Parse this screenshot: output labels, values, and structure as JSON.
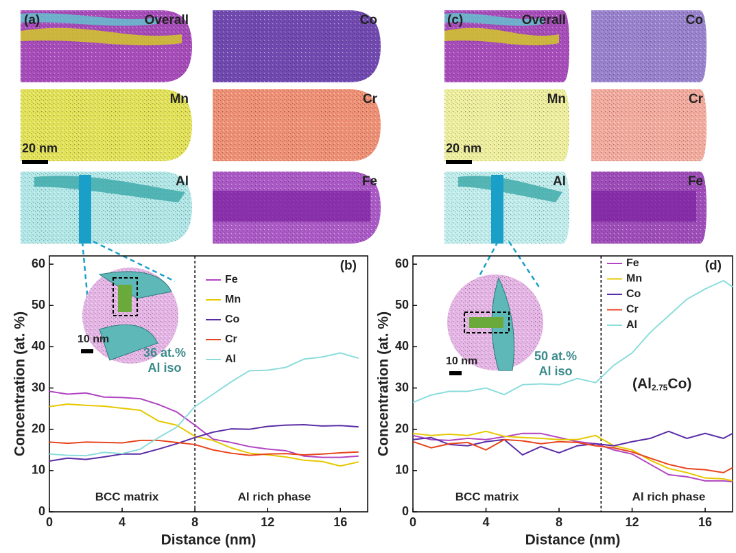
{
  "images": [
    {
      "label": "(a)",
      "maps": [
        "Overall",
        "Co",
        "Mn",
        "Cr",
        "Al",
        "Fe"
      ],
      "scale": "20 nm"
    },
    {
      "label": "(c)",
      "maps": [
        "Overall",
        "Co",
        "Mn",
        "Cr",
        "Al",
        "Fe"
      ],
      "scale": "20 nm"
    }
  ],
  "chart_data": [
    {
      "type": "line",
      "panel_label": "(b)",
      "x_label": "Distance (nm)",
      "y_label": "Concentration (at. %)",
      "x": [
        0,
        1,
        2,
        3,
        4,
        5,
        6,
        7,
        8,
        9,
        10,
        11,
        12,
        13,
        14,
        15,
        16,
        17
      ],
      "xlim": [
        0,
        17.5
      ],
      "xticks": [
        0,
        4,
        8,
        12,
        16
      ],
      "ylim": [
        0,
        62
      ],
      "yticks": [
        0,
        10,
        20,
        30,
        40,
        50,
        60
      ],
      "divider_x": 8,
      "regions": [
        "BCC matrix",
        "Al rich phase"
      ],
      "inset": {
        "scale": "10 nm",
        "iso": [
          "36 at.%",
          "Al iso"
        ]
      },
      "series": [
        {
          "name": "Fe",
          "color": "#b144c2",
          "values": [
            29.2,
            28.5,
            28.8,
            27.8,
            27.7,
            27.4,
            26.0,
            24.2,
            21.0,
            17.6,
            16.8,
            15.8,
            15.2,
            14.8,
            13.5,
            13.2,
            13.2,
            13.5
          ]
        },
        {
          "name": "Mn",
          "color": "#e6c800",
          "values": [
            25.5,
            26.1,
            25.8,
            25.6,
            25.1,
            24.6,
            22.0,
            21.0,
            18.3,
            17.3,
            15.5,
            14.2,
            13.8,
            13.3,
            12.5,
            12.2,
            11.1,
            12.1
          ]
        },
        {
          "name": "Co",
          "color": "#5a2ca6",
          "values": [
            12.3,
            13.0,
            12.7,
            13.3,
            14.0,
            14.0,
            15.2,
            16.5,
            18.0,
            19.3,
            20.1,
            20.0,
            20.7,
            21.0,
            21.1,
            20.8,
            20.9,
            20.6
          ]
        },
        {
          "name": "Cr",
          "color": "#e8441c",
          "values": [
            16.9,
            16.6,
            16.9,
            16.8,
            16.7,
            17.3,
            17.3,
            16.8,
            16.3,
            15.0,
            14.2,
            13.7,
            14.0,
            14.1,
            13.8,
            14.0,
            14.3,
            14.5
          ]
        },
        {
          "name": "Al",
          "color": "#8cdcdc",
          "values": [
            14.0,
            13.7,
            13.6,
            14.4,
            14.1,
            15.2,
            18.0,
            20.5,
            25.5,
            28.5,
            31.5,
            34.2,
            34.3,
            35.0,
            37.0,
            37.5,
            38.5,
            37.2
          ]
        }
      ]
    },
    {
      "type": "line",
      "panel_label": "(d)",
      "x_label": "Distance (nm)",
      "y_label": "Concentration (at. %)",
      "x": [
        0,
        1,
        2,
        3,
        4,
        5,
        6,
        7,
        8,
        9,
        10,
        11,
        12,
        13,
        14,
        15,
        16,
        17,
        17.5
      ],
      "xlim": [
        0,
        17.5
      ],
      "xticks": [
        0,
        4,
        8,
        12,
        16
      ],
      "ylim": [
        0,
        62
      ],
      "yticks": [
        0,
        10,
        20,
        30,
        40,
        50,
        60
      ],
      "divider_x": 10.3,
      "regions": [
        "BCC matrix",
        "Al rich phase"
      ],
      "inset": {
        "scale": "10 nm",
        "iso": [
          "50 at.%",
          "Al iso"
        ]
      },
      "phase": [
        "(Al",
        "2.75",
        "Co)"
      ],
      "series": [
        {
          "name": "Fe",
          "color": "#b144c2",
          "values": [
            18.5,
            17.5,
            17.3,
            17.8,
            17.5,
            18.2,
            19.0,
            19.0,
            18.0,
            17.0,
            16.5,
            15.0,
            14.0,
            11.5,
            9.0,
            8.5,
            7.5,
            7.5,
            7.3
          ]
        },
        {
          "name": "Mn",
          "color": "#e6c800",
          "values": [
            19.0,
            18.5,
            18.8,
            18.5,
            19.5,
            18.3,
            18.0,
            17.8,
            17.5,
            17.5,
            18.5,
            16.0,
            15.0,
            12.5,
            10.5,
            9.5,
            8.2,
            8.0,
            7.5
          ]
        },
        {
          "name": "Co",
          "color": "#5a2ca6",
          "values": [
            17.5,
            18.0,
            16.3,
            16.0,
            17.0,
            17.5,
            13.8,
            15.8,
            14.3,
            16.0,
            16.5,
            16.0,
            17.0,
            17.8,
            19.5,
            17.8,
            19.0,
            17.8,
            19.0
          ]
        },
        {
          "name": "Cr",
          "color": "#e8441c",
          "values": [
            17.0,
            15.5,
            16.5,
            16.8,
            15.0,
            17.5,
            17.2,
            16.5,
            17.0,
            16.8,
            16.0,
            15.5,
            14.5,
            13.0,
            11.5,
            10.5,
            10.2,
            9.5,
            10.7
          ]
        },
        {
          "name": "Al",
          "color": "#8cdcdc",
          "values": [
            26.5,
            28.3,
            29.2,
            29.2,
            30.0,
            28.4,
            30.8,
            31.0,
            30.8,
            32.3,
            31.3,
            35.5,
            38.5,
            43.5,
            47.5,
            51.5,
            54.0,
            56.0,
            54.5
          ]
        }
      ]
    }
  ]
}
